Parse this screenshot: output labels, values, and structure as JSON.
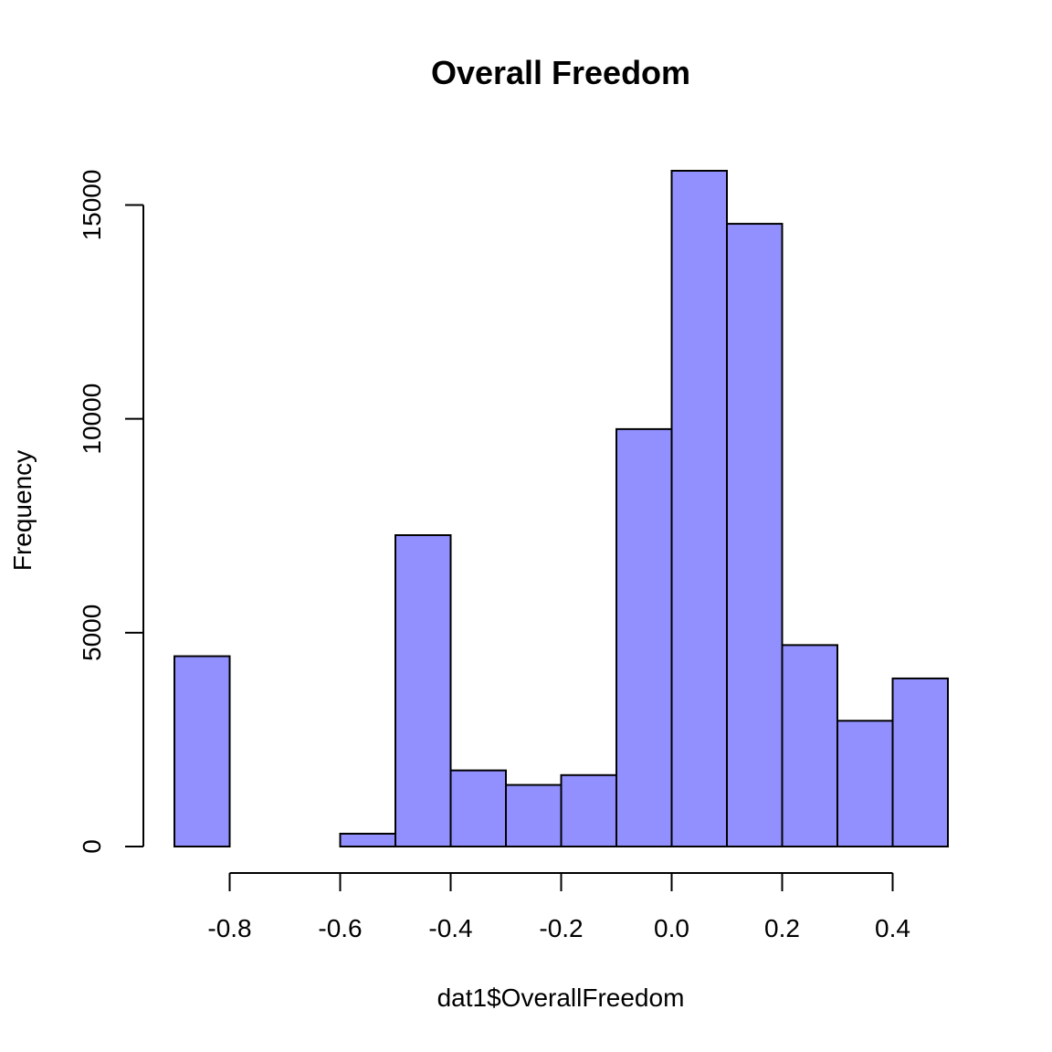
{
  "chart_data": {
    "type": "bar",
    "title": "Overall Freedom",
    "xlabel": "dat1$OverallFreedom",
    "ylabel": "Frequency",
    "bins": [
      [
        -0.9,
        -0.8
      ],
      [
        -0.8,
        -0.7
      ],
      [
        -0.7,
        -0.6
      ],
      [
        -0.6,
        -0.5
      ],
      [
        -0.5,
        -0.4
      ],
      [
        -0.4,
        -0.3
      ],
      [
        -0.3,
        -0.2
      ],
      [
        -0.2,
        -0.1
      ],
      [
        -0.1,
        0.0
      ],
      [
        0.0,
        0.1
      ],
      [
        0.1,
        0.2
      ],
      [
        0.2,
        0.3
      ],
      [
        0.3,
        0.4
      ],
      [
        0.4,
        0.5
      ]
    ],
    "values": [
      4450,
      0,
      0,
      300,
      7280,
      1780,
      1440,
      1670,
      9760,
      15800,
      14560,
      4710,
      2940,
      3930
    ],
    "xlim": [
      -0.9,
      0.5
    ],
    "ylim": [
      0,
      15800
    ],
    "x_ticks": [
      -0.8,
      -0.6,
      -0.4,
      -0.2,
      0.0,
      0.2,
      0.4
    ],
    "x_tick_labels": [
      "-0.8",
      "-0.6",
      "-0.4",
      "-0.2",
      "0.0",
      "0.2",
      "0.4"
    ],
    "y_ticks": [
      0,
      5000,
      10000,
      15000
    ],
    "y_tick_labels": [
      "0",
      "5000",
      "10000",
      "15000"
    ],
    "bar_fill_color": "#9290ff",
    "bar_edge_color": "#000000",
    "grid": false,
    "legend": "none"
  }
}
